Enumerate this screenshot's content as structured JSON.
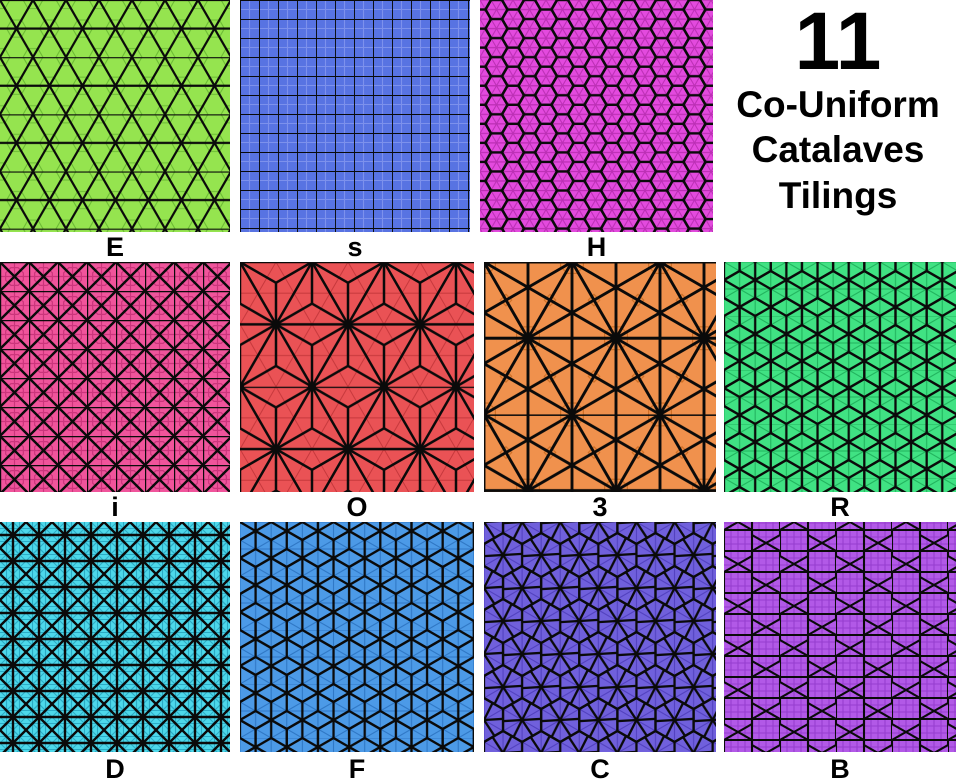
{
  "title": {
    "number": "11",
    "lines": [
      "Co-Uniform",
      "Catalaves",
      "Tilings"
    ]
  },
  "colors": {
    "line": "#0a0a0a",
    "background": "#ffffff",
    "text": "#000000"
  },
  "rows": [
    [
      "E",
      "s",
      "H"
    ],
    [
      "i",
      "O",
      "3",
      "R"
    ],
    [
      "D",
      "F",
      "C",
      "B"
    ]
  ],
  "tiles": [
    {
      "id": "E",
      "label": "E",
      "pattern": "triangular",
      "base": "#95e44f",
      "faint": "#64b32f"
    },
    {
      "id": "s",
      "label": "s",
      "pattern": "square",
      "base": "#5873e2",
      "faint": "#8497ee"
    },
    {
      "id": "H",
      "label": "H",
      "pattern": "hexstar",
      "base": "#e34ade",
      "faint": "#b52bae"
    },
    {
      "id": "i",
      "label": "i",
      "pattern": "squarex",
      "base": "#f0549b",
      "faint": "#c42f75"
    },
    {
      "id": "O",
      "label": "O",
      "pattern": "asanoha",
      "base": "#ea5255",
      "faint": "#c03337"
    },
    {
      "id": "3",
      "label": "3",
      "pattern": "kisrhombille",
      "base": "#f0914d",
      "faint": "#c9691f"
    },
    {
      "id": "R",
      "label": "R",
      "pattern": "rhombille",
      "base": "#40e283",
      "faint": "#1cab57"
    },
    {
      "id": "D",
      "label": "D",
      "pattern": "cairo",
      "base": "#4dd8ea",
      "faint": "#26a3be"
    },
    {
      "id": "F",
      "label": "F",
      "pattern": "rhombille2",
      "base": "#4c9ae7",
      "faint": "#2a71bf"
    },
    {
      "id": "C",
      "label": "C",
      "pattern": "floret",
      "base": "#7060dc",
      "faint": "#4c3bba"
    },
    {
      "id": "B",
      "label": "B",
      "pattern": "prismatic",
      "base": "#b259e7",
      "faint": "#9138cc"
    }
  ]
}
